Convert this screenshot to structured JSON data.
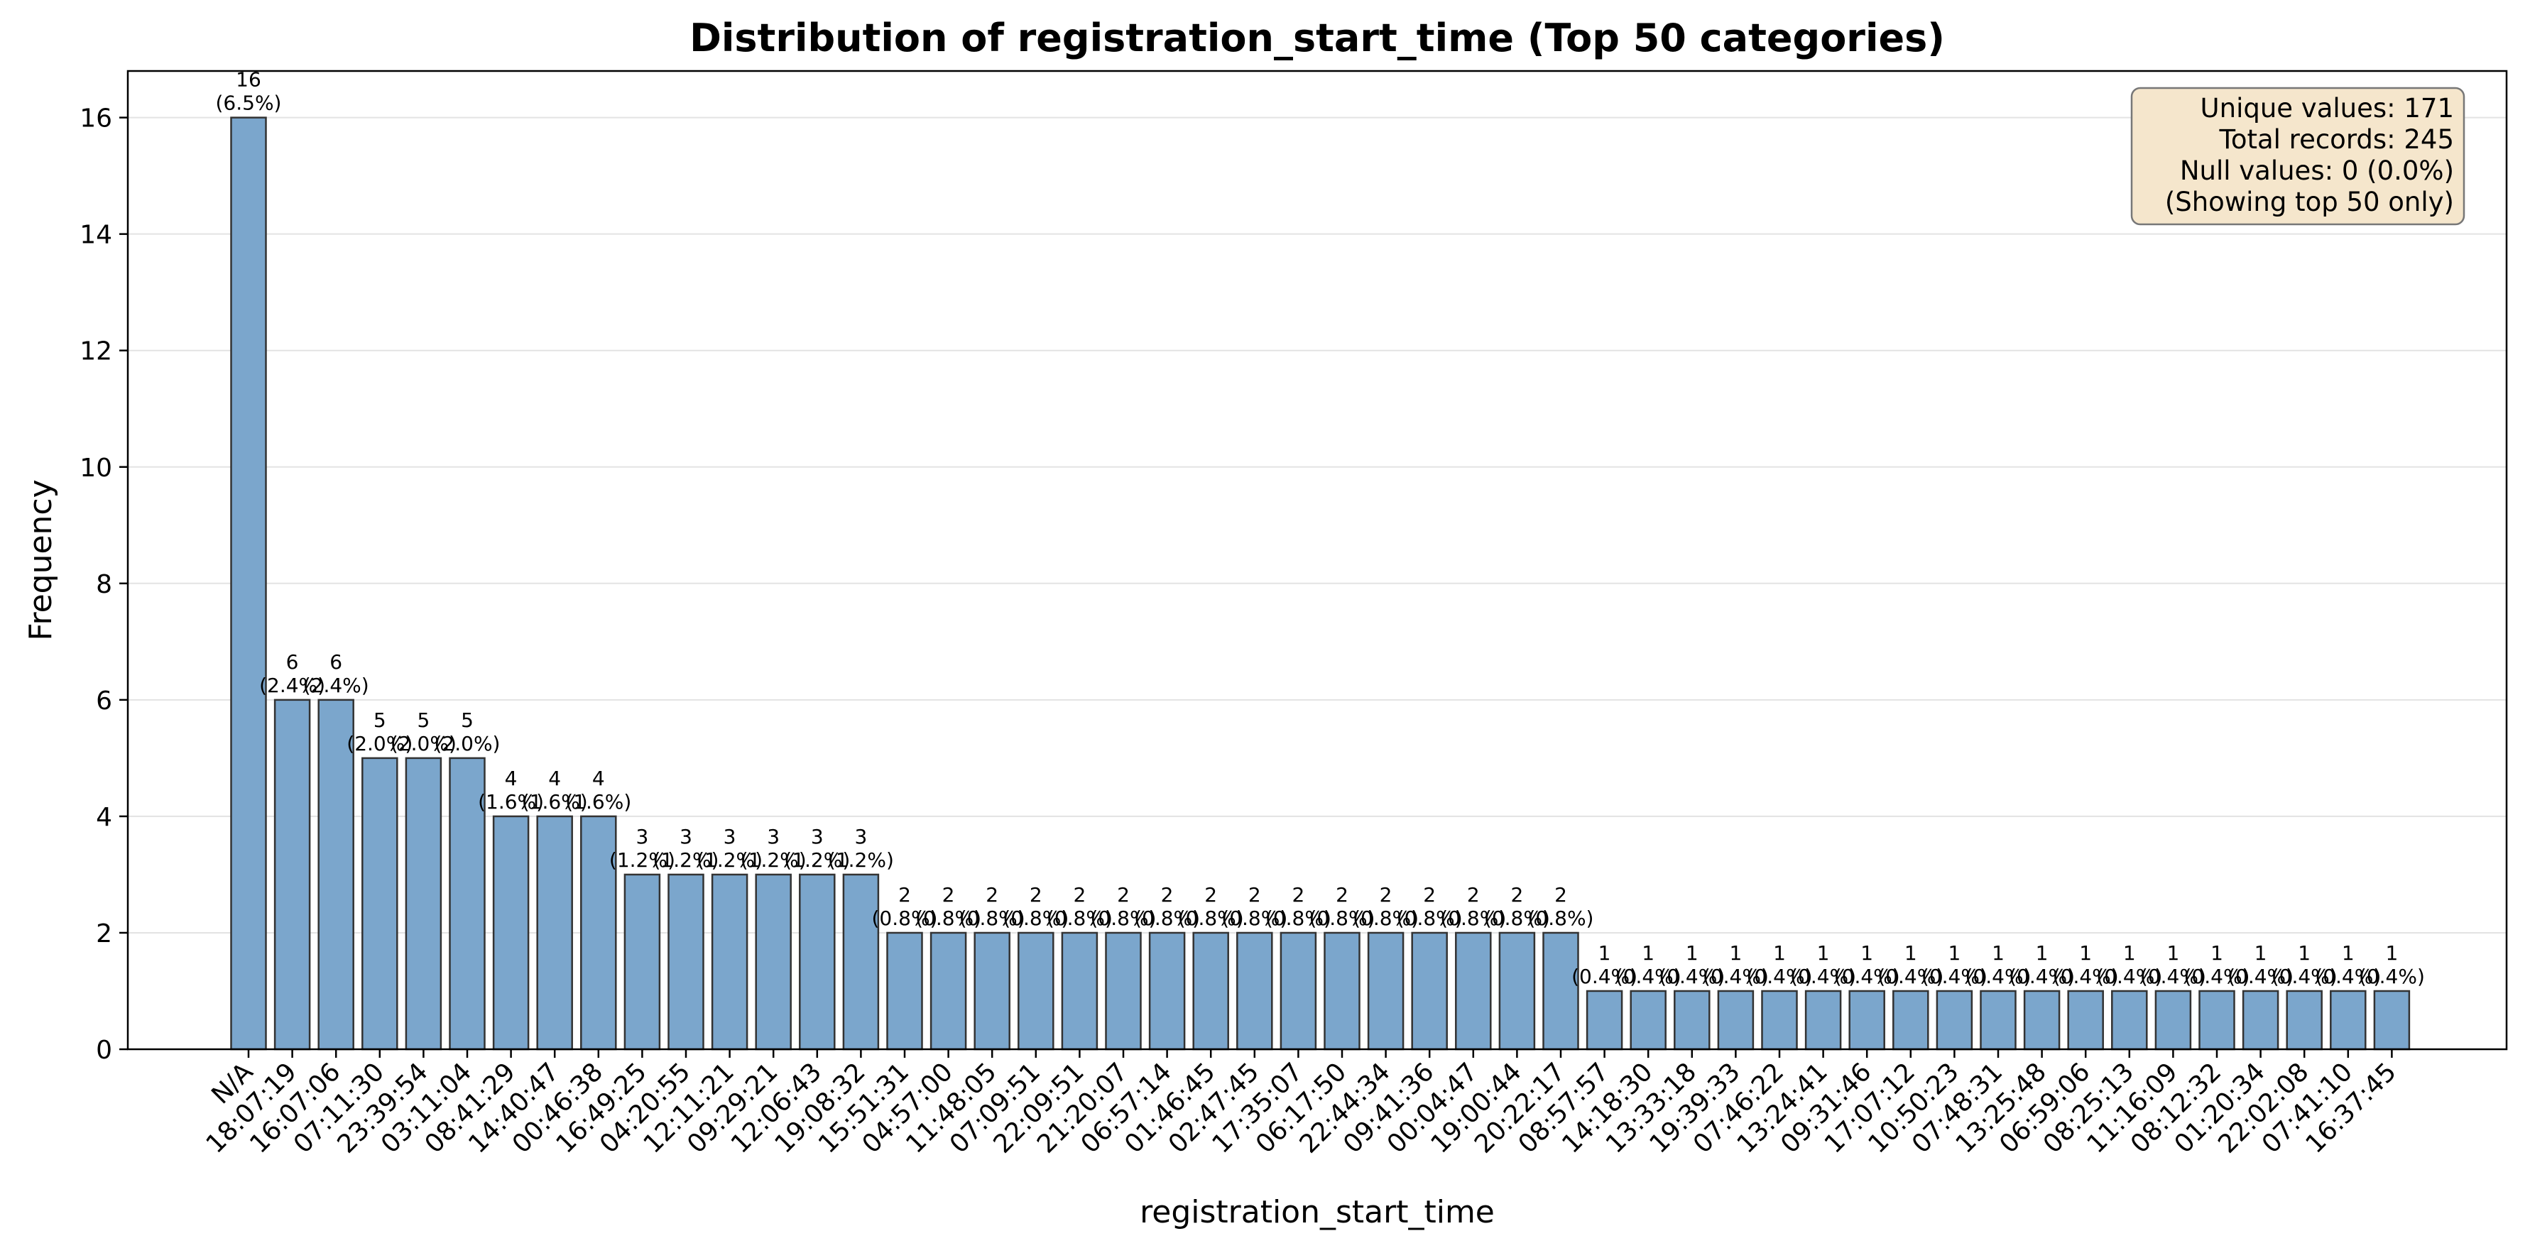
{
  "chart_data": {
    "type": "bar",
    "title": "Distribution of registration_start_time (Top 50 categories)",
    "xlabel": "registration_start_time",
    "ylabel": "Frequency",
    "ylim": [
      0,
      16.8
    ],
    "yticks": [
      0,
      2,
      4,
      6,
      8,
      10,
      12,
      14,
      16
    ],
    "grid": "horizontal",
    "bar_color": "#7ba6cc",
    "bar_edge_color": "#333333",
    "categories": [
      "N/A",
      "18:07:19",
      "16:07:06",
      "07:11:30",
      "23:39:54",
      "03:11:04",
      "08:41:29",
      "14:40:47",
      "00:46:38",
      "16:49:25",
      "04:20:55",
      "12:11:21",
      "09:29:21",
      "12:06:43",
      "19:08:32",
      "15:51:31",
      "04:57:00",
      "11:48:05",
      "07:09:51",
      "22:09:51",
      "21:20:07",
      "06:57:14",
      "01:46:45",
      "02:47:45",
      "17:35:07",
      "06:17:50",
      "22:44:34",
      "09:41:36",
      "00:04:47",
      "19:00:44",
      "20:22:17",
      "08:57:57",
      "14:18:30",
      "13:33:18",
      "19:39:33",
      "07:46:22",
      "13:24:41",
      "09:31:46",
      "17:07:12",
      "10:50:23",
      "07:48:31",
      "13:25:48",
      "06:59:06",
      "08:25:13",
      "11:16:09",
      "08:12:32",
      "01:20:34",
      "22:02:08",
      "07:41:10",
      "16:37:45"
    ],
    "values": [
      16,
      6,
      6,
      5,
      5,
      5,
      4,
      4,
      4,
      3,
      3,
      3,
      3,
      3,
      3,
      2,
      2,
      2,
      2,
      2,
      2,
      2,
      2,
      2,
      2,
      2,
      2,
      2,
      2,
      2,
      2,
      1,
      1,
      1,
      1,
      1,
      1,
      1,
      1,
      1,
      1,
      1,
      1,
      1,
      1,
      1,
      1,
      1,
      1,
      1
    ],
    "bar_labels": [
      "16\n(6.5%)",
      "6\n(2.4%)",
      "6\n(2.4%)",
      "5\n(2.0%)",
      "5\n(2.0%)",
      "5\n(2.0%)",
      "4\n(1.6%)",
      "4\n(1.6%)",
      "4\n(1.6%)",
      "3\n(1.2%)",
      "3\n(1.2%)",
      "3\n(1.2%)",
      "3\n(1.2%)",
      "3\n(1.2%)",
      "3\n(1.2%)",
      "2\n(0.8%)",
      "2\n(0.8%)",
      "2\n(0.8%)",
      "2\n(0.8%)",
      "2\n(0.8%)",
      "2\n(0.8%)",
      "2\n(0.8%)",
      "2\n(0.8%)",
      "2\n(0.8%)",
      "2\n(0.8%)",
      "2\n(0.8%)",
      "2\n(0.8%)",
      "2\n(0.8%)",
      "2\n(0.8%)",
      "2\n(0.8%)",
      "2\n(0.8%)",
      "1\n(0.4%)",
      "1\n(0.4%)",
      "1\n(0.4%)",
      "1\n(0.4%)",
      "1\n(0.4%)",
      "1\n(0.4%)",
      "1\n(0.4%)",
      "1\n(0.4%)",
      "1\n(0.4%)",
      "1\n(0.4%)",
      "1\n(0.4%)",
      "1\n(0.4%)",
      "1\n(0.4%)",
      "1\n(0.4%)",
      "1\n(0.4%)",
      "1\n(0.4%)",
      "1\n(0.4%)",
      "1\n(0.4%)",
      "1\n(0.4%)"
    ],
    "stats_box": {
      "placement": "top-right",
      "lines": [
        "Unique values: 171",
        "Total records: 245",
        "Null values: 0 (0.0%)",
        "(Showing top 50 only)"
      ],
      "fill_color": "#f5e6cc",
      "edge_color": "#777777"
    }
  }
}
